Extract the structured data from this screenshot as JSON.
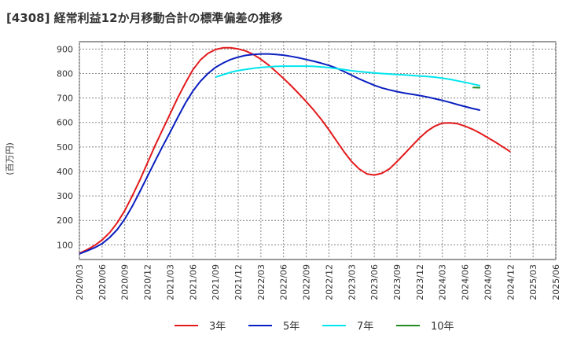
{
  "chart_data": {
    "type": "line",
    "title": "[4308]  経常利益12か月移動合計の標準偏差の推移",
    "ylabel": "(百万円)",
    "xlabel": "",
    "ylim": [
      40,
      930
    ],
    "yticks": [
      100,
      200,
      300,
      400,
      500,
      600,
      700,
      800,
      900
    ],
    "grid": true,
    "legend_position": "bottom",
    "x_ticks": [
      "2020/03",
      "2020/06",
      "2020/09",
      "2020/12",
      "2021/03",
      "2021/06",
      "2021/09",
      "2021/12",
      "2022/03",
      "2022/06",
      "2022/09",
      "2022/12",
      "2023/03",
      "2023/06",
      "2023/09",
      "2023/12",
      "2024/03",
      "2024/06",
      "2024/09",
      "2024/12",
      "2025/03",
      "2025/06"
    ],
    "series": [
      {
        "name": "3年",
        "color": "#e31a1c",
        "points": [
          [
            "2020/03",
            65
          ],
          [
            "2020/04",
            80
          ],
          [
            "2020/05",
            97
          ],
          [
            "2020/06",
            120
          ],
          [
            "2020/07",
            150
          ],
          [
            "2020/08",
            190
          ],
          [
            "2020/09",
            240
          ],
          [
            "2020/10",
            300
          ],
          [
            "2020/11",
            365
          ],
          [
            "2020/12",
            435
          ],
          [
            "2021/01",
            505
          ],
          [
            "2021/02",
            570
          ],
          [
            "2021/03",
            635
          ],
          [
            "2021/04",
            700
          ],
          [
            "2021/05",
            760
          ],
          [
            "2021/06",
            815
          ],
          [
            "2021/07",
            855
          ],
          [
            "2021/08",
            882
          ],
          [
            "2021/09",
            898
          ],
          [
            "2021/10",
            905
          ],
          [
            "2021/11",
            905
          ],
          [
            "2021/12",
            900
          ],
          [
            "2022/01",
            892
          ],
          [
            "2022/02",
            878
          ],
          [
            "2022/03",
            858
          ],
          [
            "2022/04",
            835
          ],
          [
            "2022/05",
            808
          ],
          [
            "2022/06",
            780
          ],
          [
            "2022/07",
            750
          ],
          [
            "2022/08",
            718
          ],
          [
            "2022/09",
            685
          ],
          [
            "2022/10",
            650
          ],
          [
            "2022/11",
            612
          ],
          [
            "2022/12",
            570
          ],
          [
            "2023/01",
            525
          ],
          [
            "2023/02",
            480
          ],
          [
            "2023/03",
            440
          ],
          [
            "2023/04",
            410
          ],
          [
            "2023/05",
            390
          ],
          [
            "2023/06",
            385
          ],
          [
            "2023/07",
            392
          ],
          [
            "2023/08",
            410
          ],
          [
            "2023/09",
            440
          ],
          [
            "2023/10",
            472
          ],
          [
            "2023/11",
            505
          ],
          [
            "2023/12",
            537
          ],
          [
            "2024/01",
            565
          ],
          [
            "2024/02",
            585
          ],
          [
            "2024/03",
            597
          ],
          [
            "2024/04",
            598
          ],
          [
            "2024/05",
            595
          ],
          [
            "2024/06",
            585
          ],
          [
            "2024/07",
            572
          ],
          [
            "2024/08",
            556
          ],
          [
            "2024/09",
            538
          ],
          [
            "2024/10",
            520
          ],
          [
            "2024/11",
            500
          ],
          [
            "2024/12",
            480
          ]
        ]
      },
      {
        "name": "5年",
        "color": "#0a1fbf",
        "points": [
          [
            "2020/03",
            63
          ],
          [
            "2020/04",
            75
          ],
          [
            "2020/05",
            88
          ],
          [
            "2020/06",
            105
          ],
          [
            "2020/07",
            130
          ],
          [
            "2020/08",
            162
          ],
          [
            "2020/09",
            205
          ],
          [
            "2020/10",
            258
          ],
          [
            "2020/11",
            318
          ],
          [
            "2020/12",
            380
          ],
          [
            "2021/01",
            442
          ],
          [
            "2021/02",
            502
          ],
          [
            "2021/03",
            560
          ],
          [
            "2021/04",
            620
          ],
          [
            "2021/05",
            678
          ],
          [
            "2021/06",
            728
          ],
          [
            "2021/07",
            768
          ],
          [
            "2021/08",
            800
          ],
          [
            "2021/09",
            825
          ],
          [
            "2021/10",
            843
          ],
          [
            "2021/11",
            857
          ],
          [
            "2021/12",
            867
          ],
          [
            "2022/01",
            874
          ],
          [
            "2022/02",
            878
          ],
          [
            "2022/03",
            880
          ],
          [
            "2022/04",
            880
          ],
          [
            "2022/05",
            878
          ],
          [
            "2022/06",
            875
          ],
          [
            "2022/07",
            870
          ],
          [
            "2022/08",
            864
          ],
          [
            "2022/09",
            857
          ],
          [
            "2022/10",
            850
          ],
          [
            "2022/11",
            842
          ],
          [
            "2022/12",
            833
          ],
          [
            "2023/01",
            822
          ],
          [
            "2023/02",
            808
          ],
          [
            "2023/03",
            793
          ],
          [
            "2023/04",
            778
          ],
          [
            "2023/05",
            765
          ],
          [
            "2023/06",
            752
          ],
          [
            "2023/07",
            741
          ],
          [
            "2023/08",
            733
          ],
          [
            "2023/09",
            726
          ],
          [
            "2023/10",
            720
          ],
          [
            "2023/11",
            715
          ],
          [
            "2023/12",
            710
          ],
          [
            "2024/01",
            704
          ],
          [
            "2024/02",
            697
          ],
          [
            "2024/03",
            690
          ],
          [
            "2024/04",
            682
          ],
          [
            "2024/05",
            673
          ],
          [
            "2024/06",
            665
          ],
          [
            "2024/07",
            657
          ],
          [
            "2024/08",
            650
          ]
        ]
      },
      {
        "name": "7年",
        "color": "#00e5ee",
        "points": [
          [
            "2021/09",
            785
          ],
          [
            "2021/10",
            795
          ],
          [
            "2021/11",
            805
          ],
          [
            "2021/12",
            812
          ],
          [
            "2022/01",
            817
          ],
          [
            "2022/02",
            821
          ],
          [
            "2022/03",
            825
          ],
          [
            "2022/04",
            827
          ],
          [
            "2022/05",
            829
          ],
          [
            "2022/06",
            830
          ],
          [
            "2022/07",
            830
          ],
          [
            "2022/08",
            830
          ],
          [
            "2022/09",
            830
          ],
          [
            "2022/10",
            829
          ],
          [
            "2022/11",
            827
          ],
          [
            "2022/12",
            824
          ],
          [
            "2023/01",
            820
          ],
          [
            "2023/02",
            816
          ],
          [
            "2023/03",
            811
          ],
          [
            "2023/04",
            808
          ],
          [
            "2023/05",
            805
          ],
          [
            "2023/06",
            802
          ],
          [
            "2023/07",
            800
          ],
          [
            "2023/08",
            798
          ],
          [
            "2023/09",
            796
          ],
          [
            "2023/10",
            794
          ],
          [
            "2023/11",
            792
          ],
          [
            "2023/12",
            790
          ],
          [
            "2024/01",
            788
          ],
          [
            "2024/02",
            785
          ],
          [
            "2024/03",
            781
          ],
          [
            "2024/04",
            776
          ],
          [
            "2024/05",
            770
          ],
          [
            "2024/06",
            764
          ],
          [
            "2024/07",
            757
          ],
          [
            "2024/08",
            750
          ]
        ]
      },
      {
        "name": "10年",
        "color": "#228b22",
        "points": [
          [
            "2024/07",
            743
          ],
          [
            "2024/08",
            742
          ]
        ]
      }
    ]
  }
}
